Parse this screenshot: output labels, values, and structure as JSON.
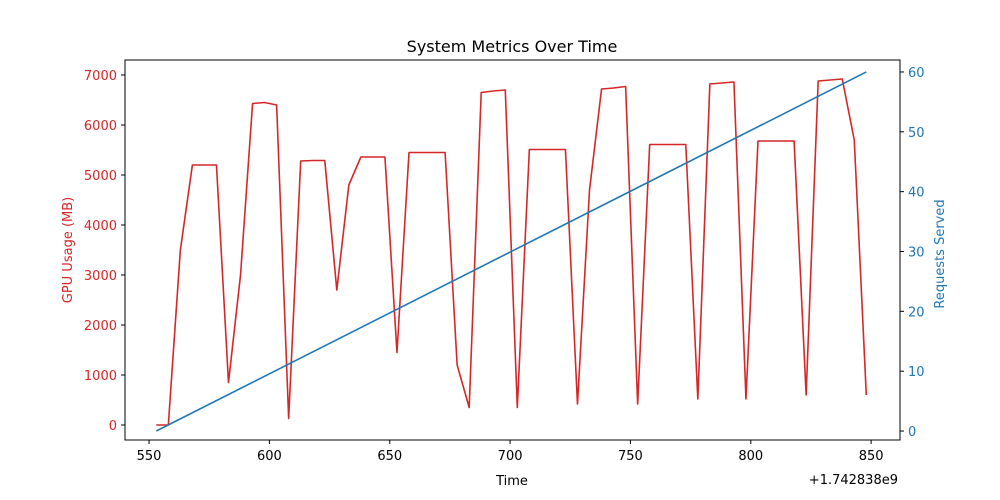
{
  "chart_data": {
    "type": "line",
    "title": "System Metrics Over Time",
    "xlabel": "Time",
    "x_offset_label": "+1.742838e9",
    "xlim": [
      540,
      862
    ],
    "xticks": [
      550,
      600,
      650,
      700,
      750,
      800,
      850
    ],
    "grid": false,
    "legend": "none",
    "left_axis": {
      "label": "GPU Usage (MB)",
      "color": "#d62728",
      "ylim": [
        -300,
        7300
      ],
      "ticks": [
        0,
        1000,
        2000,
        3000,
        4000,
        5000,
        6000,
        7000
      ]
    },
    "right_axis": {
      "label": "Requests Served",
      "color": "#1f77b4",
      "ylim": [
        -1.5,
        62
      ],
      "ticks": [
        0,
        10,
        20,
        30,
        40,
        50,
        60
      ]
    },
    "series": [
      {
        "axis": "left",
        "color": "#d62728",
        "x": [
          553,
          558,
          563,
          568,
          578,
          583,
          588,
          593,
          598,
          603,
          608,
          613,
          618,
          623,
          628,
          633,
          638,
          643,
          648,
          653,
          658,
          663,
          668,
          673,
          678,
          683,
          688,
          693,
          698,
          703,
          708,
          713,
          718,
          723,
          728,
          733,
          738,
          743,
          748,
          753,
          758,
          763,
          768,
          773,
          778,
          783,
          788,
          793,
          798,
          803,
          808,
          813,
          818,
          823,
          828,
          833,
          838,
          843,
          848
        ],
        "values": [
          0,
          0,
          3500,
          5200,
          5200,
          850,
          3000,
          6430,
          6450,
          6400,
          130,
          5280,
          5290,
          5290,
          2700,
          4800,
          5360,
          5360,
          5360,
          1450,
          5450,
          5450,
          5450,
          5450,
          1200,
          350,
          6650,
          6680,
          6700,
          350,
          5510,
          5510,
          5510,
          5510,
          420,
          4700,
          6720,
          6740,
          6770,
          420,
          5610,
          5610,
          5610,
          5610,
          520,
          6820,
          6840,
          6860,
          520,
          5680,
          5680,
          5680,
          5680,
          600,
          6880,
          6900,
          6920,
          5700,
          600
        ]
      },
      {
        "axis": "right",
        "color": "#1f77b4",
        "x": [
          553,
          848
        ],
        "values": [
          0,
          60
        ]
      }
    ]
  }
}
